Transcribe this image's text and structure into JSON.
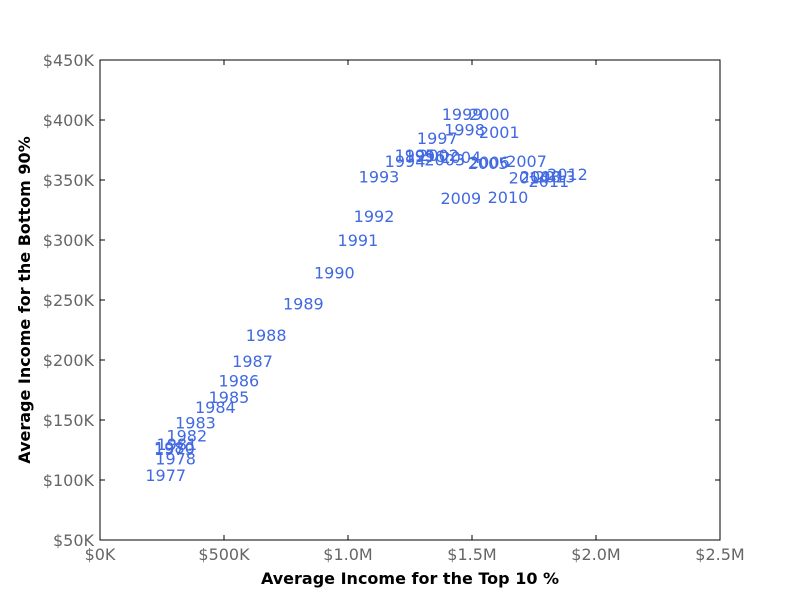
{
  "chart_data": {
    "type": "scatter",
    "title": "",
    "xlabel": "Average Income for the Top 10 %",
    "ylabel": "Average Income for the Bottom 90%",
    "xlim": [
      0,
      2500000
    ],
    "ylim": [
      50000,
      450000
    ],
    "x_ticks": [
      0,
      500000,
      1000000,
      1500000,
      2000000,
      2500000
    ],
    "x_tick_labels": [
      "$0K",
      "$500K",
      "$1.0M",
      "$1.5M",
      "$2.0M",
      "$2.5M"
    ],
    "y_ticks": [
      50000,
      100000,
      150000,
      200000,
      250000,
      300000,
      350000,
      400000,
      450000
    ],
    "y_tick_labels": [
      "$50K",
      "$100K",
      "$150K",
      "$200K",
      "$250K",
      "$300K",
      "$350K",
      "$400K",
      "$450K"
    ],
    "grid": false,
    "label_color": "#4169e1",
    "points": [
      {
        "label": "1977",
        "x": 265000,
        "y": 104000
      },
      {
        "label": "1978",
        "x": 305000,
        "y": 118000
      },
      {
        "label": "1979",
        "x": 300000,
        "y": 126000
      },
      {
        "label": "1980",
        "x": 300000,
        "y": 127000
      },
      {
        "label": "1981",
        "x": 310000,
        "y": 130000
      },
      {
        "label": "1982",
        "x": 350000,
        "y": 137000
      },
      {
        "label": "1983",
        "x": 385000,
        "y": 148000
      },
      {
        "label": "1984",
        "x": 465000,
        "y": 161000
      },
      {
        "label": "1985",
        "x": 520000,
        "y": 169000
      },
      {
        "label": "1986",
        "x": 560000,
        "y": 183000
      },
      {
        "label": "1987",
        "x": 615000,
        "y": 199000
      },
      {
        "label": "1988",
        "x": 670000,
        "y": 221000
      },
      {
        "label": "1989",
        "x": 820000,
        "y": 247000
      },
      {
        "label": "1990",
        "x": 945000,
        "y": 273000
      },
      {
        "label": "1991",
        "x": 1040000,
        "y": 300000
      },
      {
        "label": "1992",
        "x": 1105000,
        "y": 320000
      },
      {
        "label": "1993",
        "x": 1125000,
        "y": 353000
      },
      {
        "label": "1994",
        "x": 1230000,
        "y": 366000
      },
      {
        "label": "1995",
        "x": 1270000,
        "y": 371000
      },
      {
        "label": "1996",
        "x": 1310000,
        "y": 370000
      },
      {
        "label": "1997",
        "x": 1360000,
        "y": 385000
      },
      {
        "label": "1998",
        "x": 1470000,
        "y": 392000
      },
      {
        "label": "1999",
        "x": 1460000,
        "y": 405000
      },
      {
        "label": "2000",
        "x": 1570000,
        "y": 405000
      },
      {
        "label": "2001",
        "x": 1610000,
        "y": 390000
      },
      {
        "label": "2002",
        "x": 1365000,
        "y": 371000
      },
      {
        "label": "2003",
        "x": 1390000,
        "y": 367000
      },
      {
        "label": "2004",
        "x": 1455000,
        "y": 369000
      },
      {
        "label": "2005",
        "x": 1565000,
        "y": 364000
      },
      {
        "label": "2006",
        "x": 1570000,
        "y": 365000
      },
      {
        "label": "2007",
        "x": 1720000,
        "y": 366000
      },
      {
        "label": "2008",
        "x": 1775000,
        "y": 353000
      },
      {
        "label": "2009",
        "x": 1455000,
        "y": 335000
      },
      {
        "label": "2010",
        "x": 1645000,
        "y": 336000
      },
      {
        "label": "2011",
        "x": 1810000,
        "y": 349000
      },
      {
        "label": "2012",
        "x": 1885000,
        "y": 355000
      },
      {
        "label": "2013",
        "x": 1835000,
        "y": 353000
      },
      {
        "label": "2014",
        "x": 1730000,
        "y": 352000
      }
    ]
  }
}
